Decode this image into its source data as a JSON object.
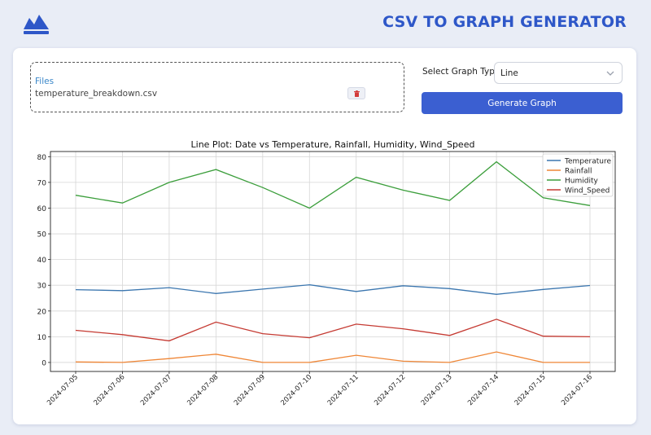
{
  "app": {
    "title": "CSV TO GRAPH GENERATOR",
    "logo_icon": "mountain-chart-icon"
  },
  "upload": {
    "label": "Files",
    "file_name": "temperature_breakdown.csv",
    "delete_icon": "trash-icon"
  },
  "graph_type": {
    "label": "Select Graph Type",
    "selected": "Line"
  },
  "generate_button": "Generate Graph",
  "colors": {
    "accent": "#3b5fd1",
    "title": "#2e57c8"
  },
  "chart_data": {
    "type": "line",
    "title": "Line Plot: Date vs Temperature, Rainfall, Humidity, Wind_Speed",
    "xlabel": "",
    "ylabel": "",
    "x": [
      "2024-07-05",
      "2024-07-06",
      "2024-07-07",
      "2024-07-08",
      "2024-07-09",
      "2024-07-10",
      "2024-07-11",
      "2024-07-12",
      "2024-07-13",
      "2024-07-14",
      "2024-07-15",
      "2024-07-16"
    ],
    "ylim": [
      -3.5,
      82
    ],
    "yticks": [
      0,
      10,
      20,
      30,
      40,
      50,
      60,
      70,
      80
    ],
    "grid": true,
    "legend_position": "top-right",
    "series": [
      {
        "name": "Temperature",
        "color": "#3b76af",
        "values": [
          28.3,
          27.9,
          29.1,
          26.8,
          28.5,
          30.2,
          27.6,
          29.8,
          28.7,
          26.5,
          28.4,
          29.9
        ]
      },
      {
        "name": "Rainfall",
        "color": "#ef8636",
        "values": [
          0.2,
          0.0,
          1.5,
          3.2,
          0.0,
          0.0,
          2.8,
          0.5,
          0.0,
          4.1,
          0.0,
          0.0
        ]
      },
      {
        "name": "Humidity",
        "color": "#3b9e3b",
        "values": [
          65,
          62,
          70,
          75,
          68,
          60,
          72,
          67,
          63,
          78,
          64,
          61
        ]
      },
      {
        "name": "Wind_Speed",
        "color": "#c53a32",
        "values": [
          12.5,
          10.8,
          8.4,
          15.7,
          11.2,
          9.6,
          14.9,
          13.1,
          10.5,
          16.8,
          10.2,
          10.0
        ]
      }
    ]
  }
}
